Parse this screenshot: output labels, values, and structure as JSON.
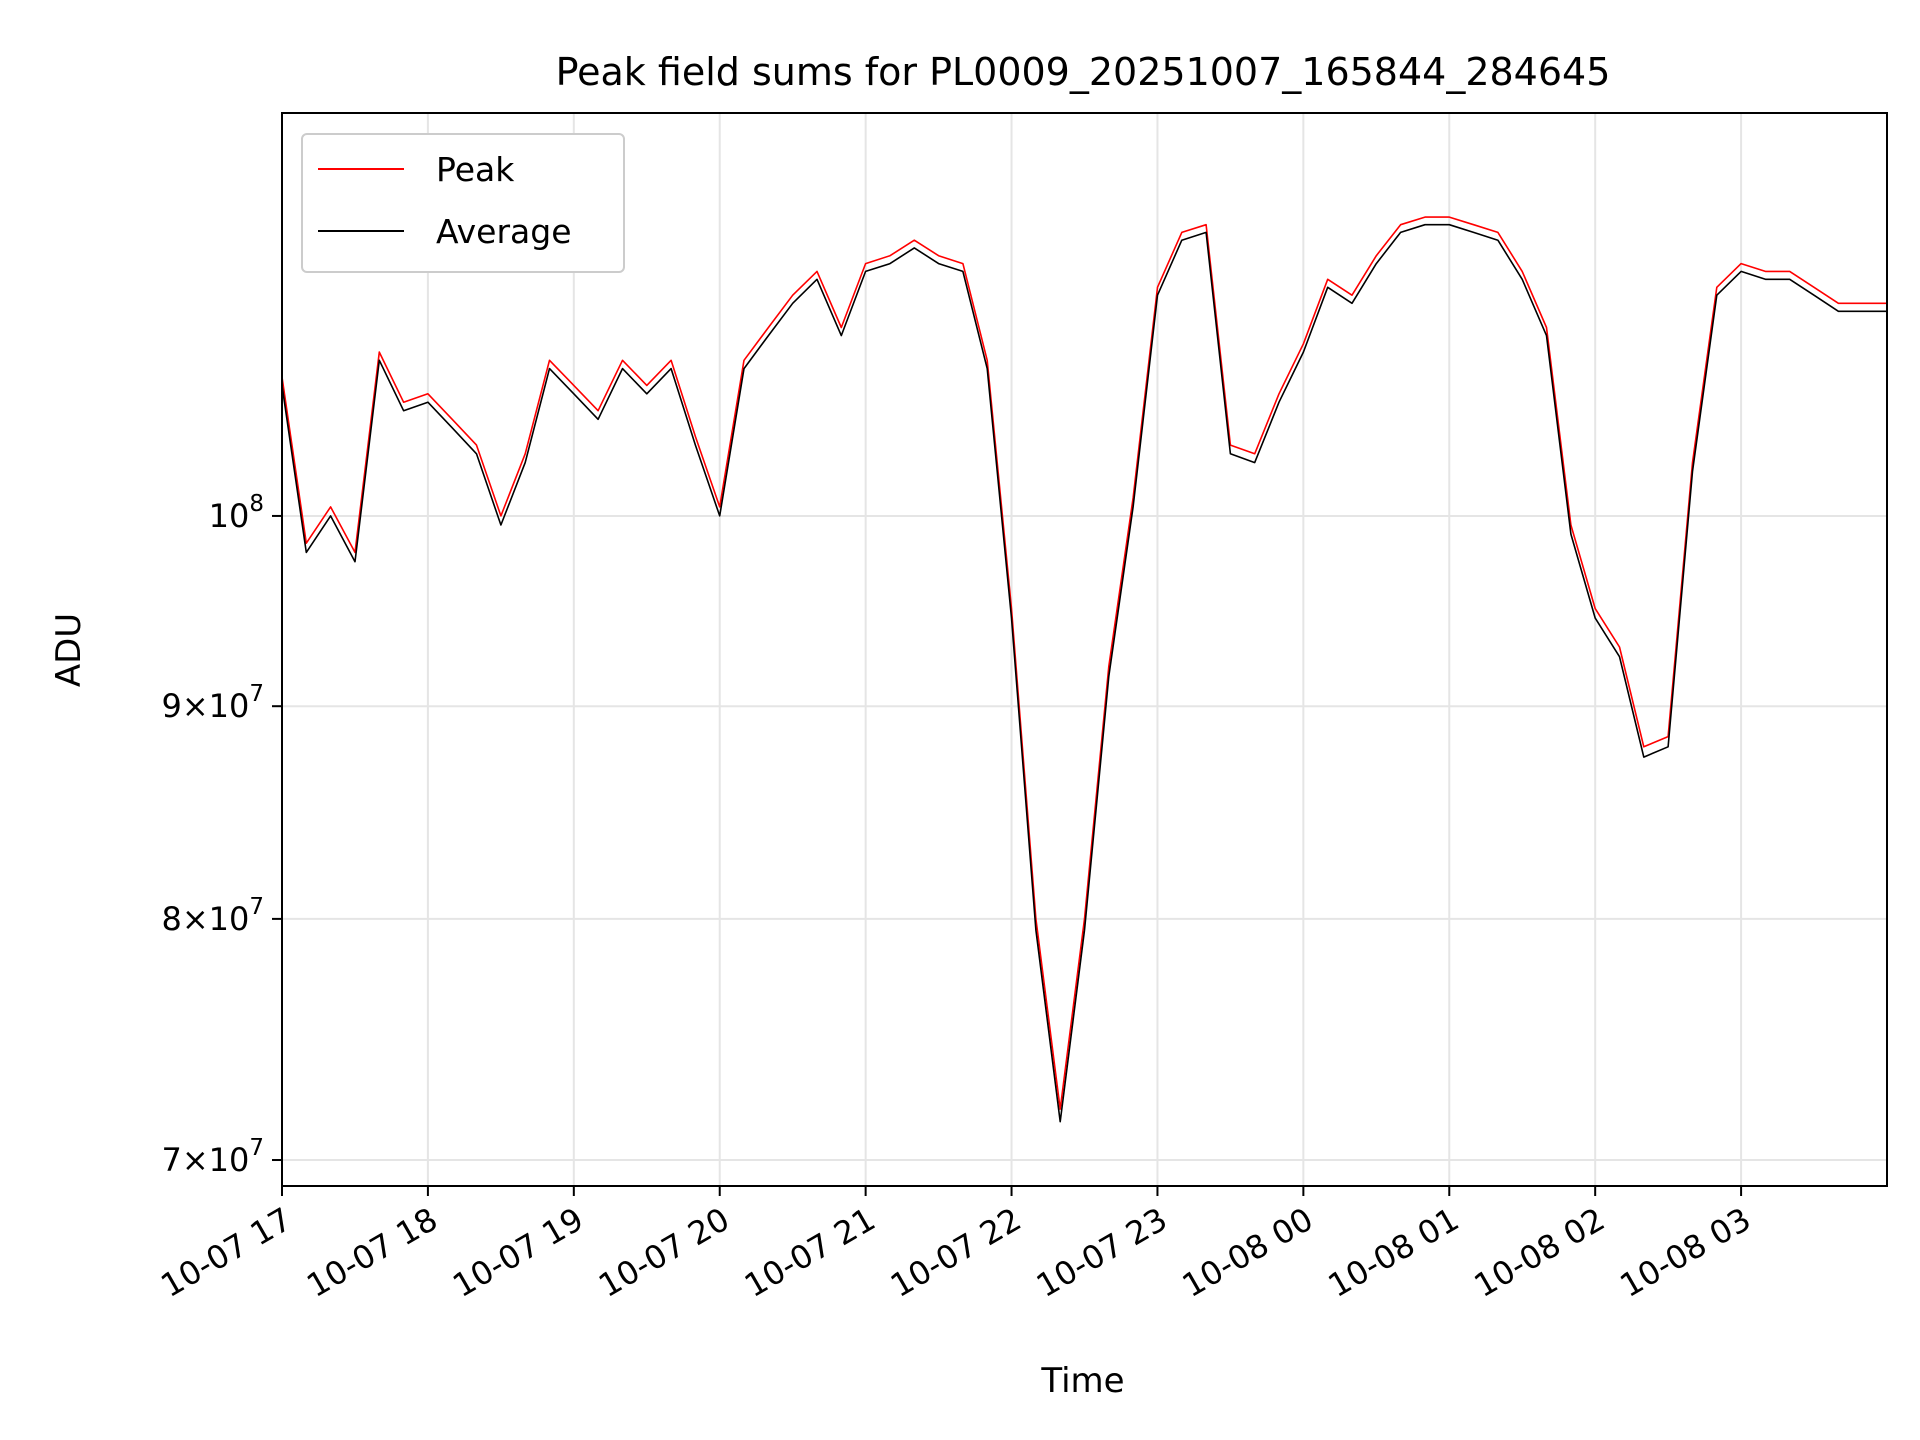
{
  "chart_data": {
    "type": "line",
    "title": "Peak field sums for PL0009_20251007_165844_284645",
    "xlabel": "Time",
    "ylabel": "ADU",
    "y_scale": "log",
    "ylim": [
      69000000,
      125000000
    ],
    "xlim": [
      "2025-10-07 17:00",
      "2025-10-08 04:00"
    ],
    "grid": true,
    "legend_position": "top-left",
    "x_tick_labels": [
      "10-07 17",
      "10-07 18",
      "10-07 19",
      "10-07 20",
      "10-07 21",
      "10-07 22",
      "10-07 23",
      "10-08 00",
      "10-08 01",
      "10-08 02",
      "10-08 03"
    ],
    "y_ticks": [
      {
        "value": 70000000,
        "mantissa": "7",
        "exp": "7"
      },
      {
        "value": 80000000,
        "mantissa": "8",
        "exp": "7"
      },
      {
        "value": 90000000,
        "mantissa": "9",
        "exp": "7"
      },
      {
        "value": 100000000,
        "mantissa": "",
        "exp": "8"
      }
    ],
    "x": [
      "2025-10-07 17:00",
      "2025-10-07 17:10",
      "2025-10-07 17:20",
      "2025-10-07 17:30",
      "2025-10-07 17:40",
      "2025-10-07 17:50",
      "2025-10-07 18:00",
      "2025-10-07 18:10",
      "2025-10-07 18:20",
      "2025-10-07 18:30",
      "2025-10-07 18:40",
      "2025-10-07 18:50",
      "2025-10-07 19:00",
      "2025-10-07 19:10",
      "2025-10-07 19:20",
      "2025-10-07 19:30",
      "2025-10-07 19:40",
      "2025-10-07 19:50",
      "2025-10-07 20:00",
      "2025-10-07 20:10",
      "2025-10-07 20:20",
      "2025-10-07 20:30",
      "2025-10-07 20:40",
      "2025-10-07 20:50",
      "2025-10-07 21:00",
      "2025-10-07 21:10",
      "2025-10-07 21:20",
      "2025-10-07 21:30",
      "2025-10-07 21:40",
      "2025-10-07 21:50",
      "2025-10-07 22:00",
      "2025-10-07 22:10",
      "2025-10-07 22:20",
      "2025-10-07 22:30",
      "2025-10-07 22:40",
      "2025-10-07 22:50",
      "2025-10-07 23:00",
      "2025-10-07 23:10",
      "2025-10-07 23:20",
      "2025-10-07 23:30",
      "2025-10-07 23:40",
      "2025-10-07 23:50",
      "2025-10-08 00:00",
      "2025-10-08 00:10",
      "2025-10-08 00:20",
      "2025-10-08 00:30",
      "2025-10-08 00:40",
      "2025-10-08 00:50",
      "2025-10-08 01:00",
      "2025-10-08 01:10",
      "2025-10-08 01:20",
      "2025-10-08 01:30",
      "2025-10-08 01:40",
      "2025-10-08 01:50",
      "2025-10-08 02:00",
      "2025-10-08 02:10",
      "2025-10-08 02:20",
      "2025-10-08 02:30",
      "2025-10-08 02:40",
      "2025-10-08 02:50",
      "2025-10-08 03:00",
      "2025-10-08 03:10",
      "2025-10-08 03:20",
      "2025-10-08 03:30",
      "2025-10-08 03:40",
      "2025-10-08 03:50",
      "2025-10-08 04:00"
    ],
    "series": [
      {
        "name": "Peak",
        "color": "#ff0000",
        "values": [
          108000000,
          98500000,
          100500000,
          98000000,
          109500000,
          106500000,
          107000000,
          105500000,
          104000000,
          100000000,
          103500000,
          109000000,
          107500000,
          106000000,
          109000000,
          107500000,
          109000000,
          104500000,
          100500000,
          109000000,
          111000000,
          113000000,
          114500000,
          111000000,
          115000000,
          115500000,
          116500000,
          115500000,
          115000000,
          109000000,
          95000000,
          80000000,
          72000000,
          80000000,
          92000000,
          101000000,
          113500000,
          117000000,
          117500000,
          104000000,
          103500000,
          107000000,
          110000000,
          114000000,
          113000000,
          115500000,
          117500000,
          118000000,
          118000000,
          117500000,
          117000000,
          114500000,
          111000000,
          99500000,
          95000000,
          93000000,
          88000000,
          88500000,
          103000000,
          113500000,
          115000000,
          114500000,
          114500000,
          113500000,
          112500000,
          112500000,
          112500000
        ]
      },
      {
        "name": "Average",
        "color": "#000000",
        "values": [
          107500000,
          98000000,
          100000000,
          97500000,
          109000000,
          106000000,
          106500000,
          105000000,
          103500000,
          99500000,
          103000000,
          108500000,
          107000000,
          105500000,
          108500000,
          107000000,
          108500000,
          104000000,
          100000000,
          108500000,
          110500000,
          112500000,
          114000000,
          110500000,
          114500000,
          115000000,
          116000000,
          115000000,
          114500000,
          108500000,
          94500000,
          79500000,
          71500000,
          79500000,
          91500000,
          100500000,
          113000000,
          116500000,
          117000000,
          103500000,
          103000000,
          106500000,
          109500000,
          113500000,
          112500000,
          115000000,
          117000000,
          117500000,
          117500000,
          117000000,
          116500000,
          114000000,
          110500000,
          99000000,
          94500000,
          92500000,
          87500000,
          88000000,
          102500000,
          113000000,
          114500000,
          114000000,
          114000000,
          113000000,
          112000000,
          112000000,
          112000000
        ]
      }
    ]
  }
}
